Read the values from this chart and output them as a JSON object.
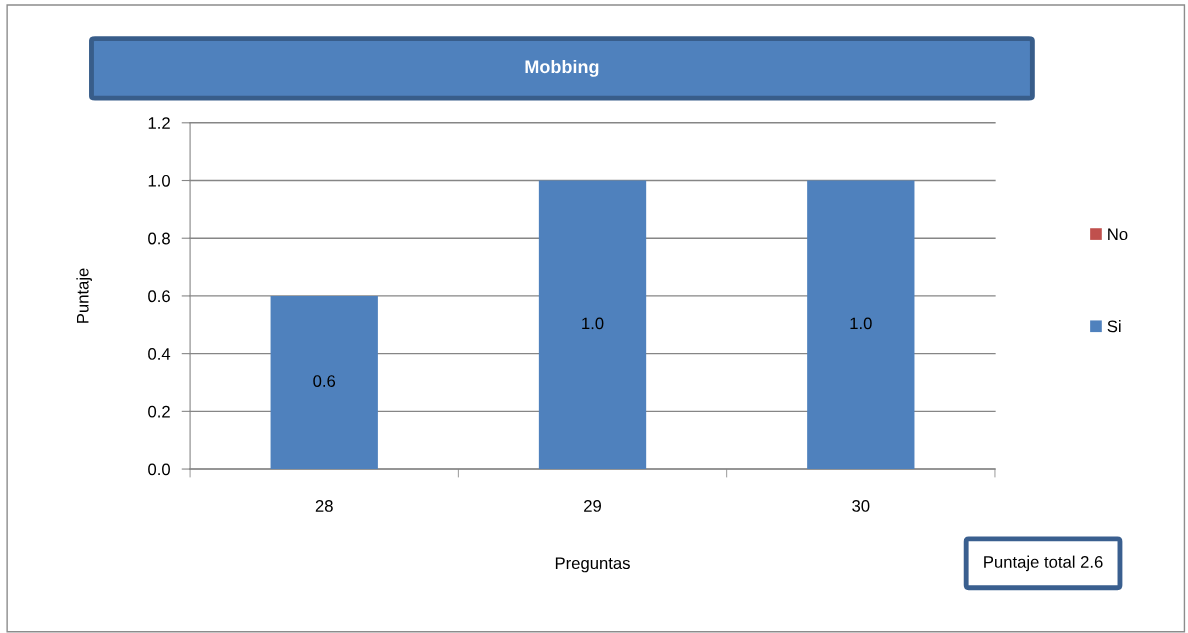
{
  "chart_data": {
    "type": "bar",
    "title": "Mobbing",
    "xlabel": "Preguntas",
    "ylabel": "Puntaje",
    "categories": [
      "28",
      "29",
      "30"
    ],
    "series": [
      {
        "name": "Si",
        "color": "#4f81bd",
        "values": [
          0.6,
          1.0,
          1.0
        ],
        "value_labels": [
          "0.6",
          "1.0",
          "1.0"
        ]
      },
      {
        "name": "No",
        "color": "#c0504d",
        "values": [
          0,
          0,
          0
        ]
      }
    ],
    "stacked": true,
    "ylim": [
      0,
      1.2
    ],
    "yticks": [
      {
        "value": 0,
        "label": "0.0"
      },
      0.2,
      0.4,
      0.6,
      0.8,
      {
        "value": 1.0,
        "label": "1.0"
      },
      1.2
    ],
    "grid": "y",
    "legend": "right",
    "annotations": [
      "Puntaje total 2.6"
    ]
  }
}
